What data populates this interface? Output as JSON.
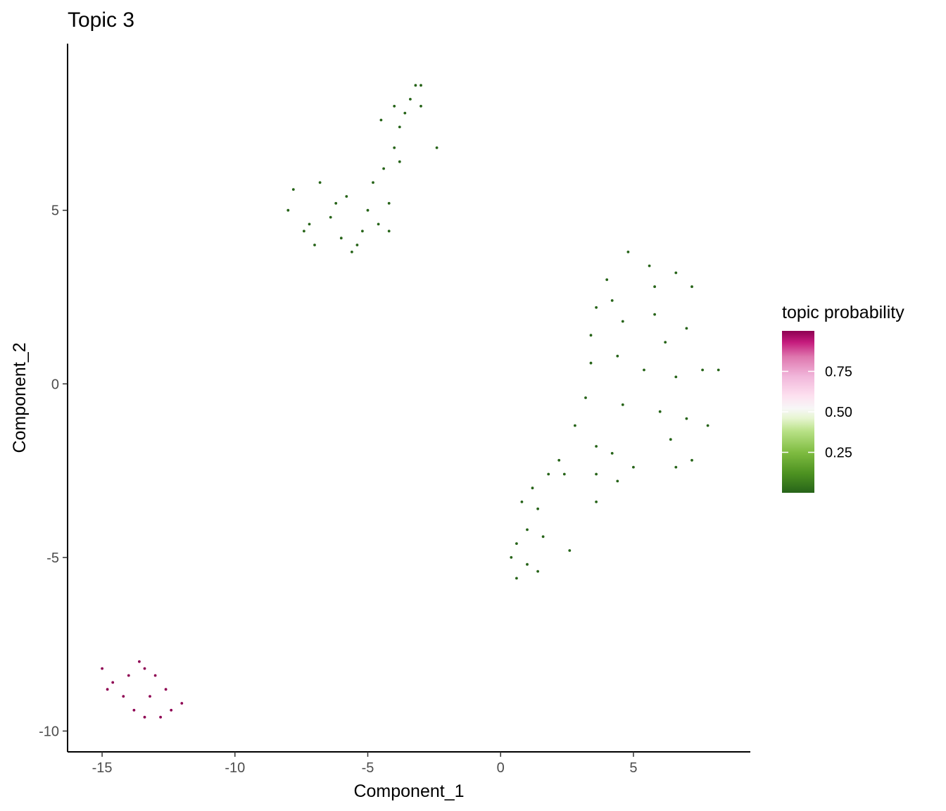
{
  "chart_data": {
    "type": "scatter",
    "title": "Topic 3",
    "xlabel": "Component_1",
    "ylabel": "Component_2",
    "xlim": [
      -16.3,
      9.4
    ],
    "ylim": [
      -10.6,
      9.8
    ],
    "x_ticks": [
      -15,
      -10,
      -5,
      0,
      5
    ],
    "y_ticks": [
      -10,
      -5,
      0,
      5
    ],
    "x_tick_labels": [
      "-15",
      "-10",
      "-5",
      "0",
      "5"
    ],
    "y_tick_labels": [
      "-10",
      "-5",
      "0",
      "5"
    ],
    "grid": false,
    "color_scale": {
      "title": "topic probability",
      "low_color": "#276419",
      "mid_color": "#f7f7f7",
      "high_color": "#8e0152",
      "range": [
        0,
        1
      ],
      "ticks": [
        0.25,
        0.5,
        0.75
      ],
      "tick_labels": [
        "0.25",
        "0.50",
        "0.75"
      ],
      "legend_position": "right"
    },
    "clusters": [
      {
        "topic_probability": 0.0,
        "points": [
          [
            -8.0,
            5.0
          ],
          [
            -7.8,
            5.6
          ],
          [
            -7.4,
            4.4
          ],
          [
            -7.0,
            4.0
          ],
          [
            -6.8,
            5.8
          ],
          [
            -6.4,
            4.8
          ],
          [
            -6.0,
            4.2
          ],
          [
            -5.8,
            5.4
          ],
          [
            -5.4,
            4.0
          ],
          [
            -5.0,
            5.0
          ],
          [
            -4.6,
            4.6
          ],
          [
            -4.8,
            5.8
          ],
          [
            -4.4,
            6.2
          ],
          [
            -4.2,
            5.2
          ],
          [
            -4.0,
            6.8
          ],
          [
            -3.8,
            7.4
          ],
          [
            -3.6,
            7.8
          ],
          [
            -3.4,
            8.2
          ],
          [
            -3.2,
            8.6
          ],
          [
            -3.0,
            8.0
          ],
          [
            -4.5,
            7.6
          ],
          [
            -3.8,
            6.4
          ],
          [
            -2.4,
            6.8
          ],
          [
            -5.2,
            4.4
          ],
          [
            -6.2,
            5.2
          ],
          [
            -7.2,
            4.6
          ],
          [
            -5.6,
            3.8
          ],
          [
            -4.2,
            4.4
          ],
          [
            -3.0,
            8.6
          ],
          [
            -4.0,
            8.0
          ]
        ]
      },
      {
        "topic_probability": 0.0,
        "points": [
          [
            4.8,
            3.8
          ],
          [
            4.0,
            3.0
          ],
          [
            5.6,
            3.4
          ],
          [
            6.6,
            3.2
          ],
          [
            7.2,
            2.8
          ],
          [
            3.6,
            2.2
          ],
          [
            3.4,
            1.4
          ],
          [
            4.6,
            1.8
          ],
          [
            5.8,
            2.0
          ],
          [
            7.0,
            1.6
          ],
          [
            3.4,
            0.6
          ],
          [
            4.4,
            0.8
          ],
          [
            5.4,
            0.4
          ],
          [
            6.6,
            0.2
          ],
          [
            7.6,
            0.4
          ],
          [
            8.2,
            0.4
          ],
          [
            3.2,
            -0.4
          ],
          [
            4.6,
            -0.6
          ],
          [
            6.0,
            -0.8
          ],
          [
            7.0,
            -1.0
          ],
          [
            7.8,
            -1.2
          ],
          [
            2.8,
            -1.2
          ],
          [
            3.6,
            -1.8
          ],
          [
            6.4,
            -1.6
          ],
          [
            7.2,
            -2.2
          ],
          [
            6.6,
            -2.4
          ],
          [
            2.2,
            -2.2
          ],
          [
            3.6,
            -2.6
          ],
          [
            4.4,
            -2.8
          ],
          [
            2.4,
            -2.6
          ],
          [
            1.8,
            -2.6
          ],
          [
            1.2,
            -3.0
          ],
          [
            0.8,
            -3.4
          ],
          [
            1.4,
            -3.6
          ],
          [
            1.0,
            -4.2
          ],
          [
            0.6,
            -4.6
          ],
          [
            1.6,
            -4.4
          ],
          [
            0.4,
            -5.0
          ],
          [
            1.0,
            -5.2
          ],
          [
            1.4,
            -5.4
          ],
          [
            0.6,
            -5.6
          ],
          [
            2.6,
            -4.8
          ],
          [
            3.6,
            -3.4
          ],
          [
            5.0,
            -2.4
          ],
          [
            4.2,
            -2.0
          ],
          [
            5.8,
            2.8
          ],
          [
            4.2,
            2.4
          ],
          [
            6.2,
            1.2
          ]
        ]
      },
      {
        "topic_probability": 1.0,
        "points": [
          [
            -15.0,
            -8.2
          ],
          [
            -14.6,
            -8.6
          ],
          [
            -14.2,
            -9.0
          ],
          [
            -13.8,
            -9.4
          ],
          [
            -13.4,
            -9.6
          ],
          [
            -13.0,
            -8.4
          ],
          [
            -12.6,
            -8.8
          ],
          [
            -12.4,
            -9.4
          ],
          [
            -12.0,
            -9.2
          ],
          [
            -13.6,
            -8.0
          ],
          [
            -14.0,
            -8.4
          ],
          [
            -13.2,
            -9.0
          ],
          [
            -12.8,
            -9.6
          ],
          [
            -14.8,
            -8.8
          ],
          [
            -13.4,
            -8.2
          ]
        ]
      }
    ]
  }
}
